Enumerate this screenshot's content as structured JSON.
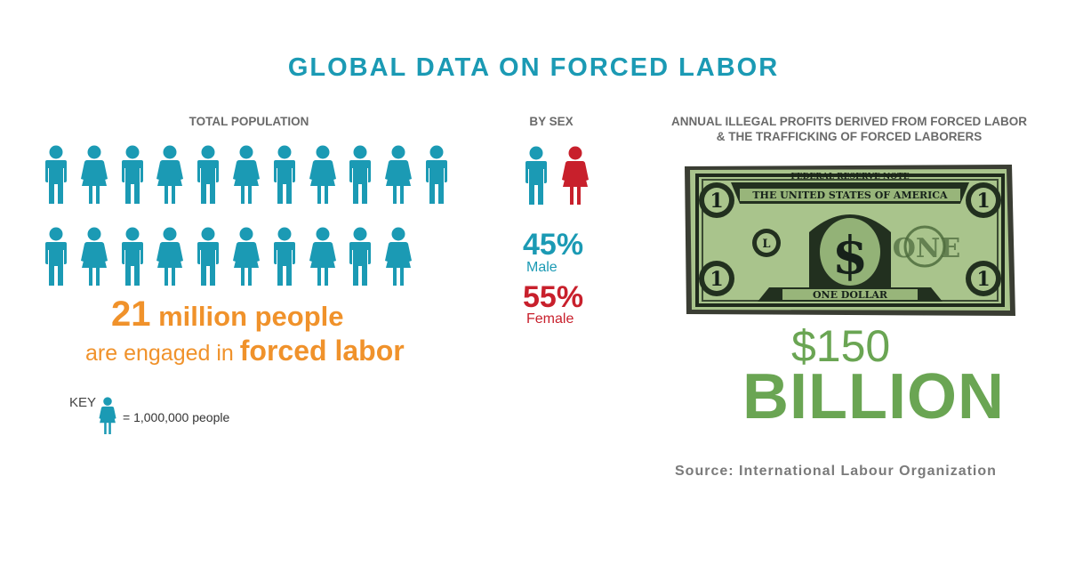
{
  "title": "GLOBAL DATA ON FORCED LABOR",
  "total_population": {
    "heading": "TOTAL POPULATION",
    "people_count_millions": 21,
    "headline_number": "21",
    "headline_rest": " million people",
    "subline_pre": "are engaged in ",
    "subline_bold": "forced labor",
    "key_label": "KEY",
    "key_text": "= 1,000,000 people"
  },
  "by_sex": {
    "heading": "BY SEX",
    "male_pct": "45%",
    "male_label": "Male",
    "female_pct": "55%",
    "female_label": "Female"
  },
  "profits": {
    "heading_line1": "ANNUAL ILLEGAL PROFITS DERIVED FROM FORCED LABOR",
    "heading_line2": "& THE TRAFFICKING OF FORCED LABORERS",
    "amount": "$150",
    "unit": "BILLION",
    "bill": {
      "top_text": "FEDERAL RESERVE NOTE",
      "banner": "THE UNITED STATES OF AMERICA",
      "bottom_text": "ONE DOLLAR",
      "corner": "1",
      "seal_letter": "L",
      "center_symbol": "$",
      "word": "ONE"
    }
  },
  "source": "Source: International Labour Organization",
  "colors": {
    "teal": "#1b9ab4",
    "orange": "#f0922b",
    "red": "#c8202c",
    "green": "#6aa553",
    "gray": "#6a6a6a"
  }
}
